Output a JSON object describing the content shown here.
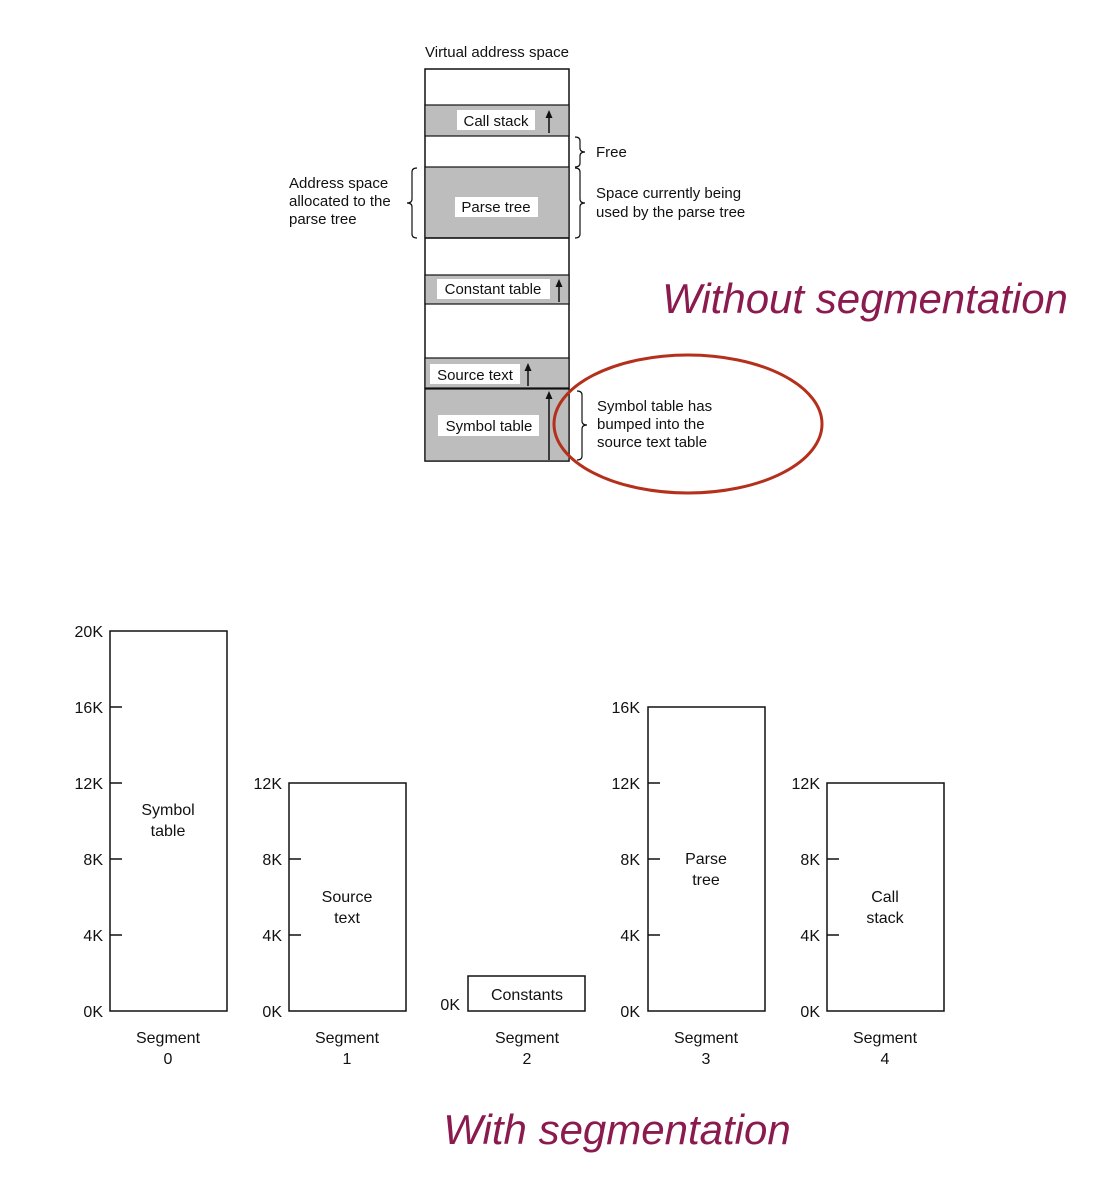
{
  "top_diagram": {
    "title": "Virtual address space",
    "regions": {
      "call_stack": "Call stack",
      "parse_tree": "Parse tree",
      "constant_table": "Constant table",
      "source_text": "Source text",
      "symbol_table": "Symbol table"
    },
    "annotations": {
      "free": "Free",
      "allocated": [
        "Address space",
        "allocated to the",
        "parse tree"
      ],
      "space_used": [
        "Space currently being",
        "used by the parse tree"
      ],
      "bumped": [
        "Symbol table has",
        "bumped into the",
        "source text table"
      ]
    },
    "highlight_color": "#b5301c",
    "caption": "Without segmentation"
  },
  "bottom_diagram": {
    "segments": [
      {
        "name": [
          "Segment",
          "0"
        ],
        "content": [
          "Symbol",
          "table"
        ],
        "size_k": 20,
        "ticks": [
          "0K",
          "4K",
          "8K",
          "12K",
          "16K",
          "20K"
        ]
      },
      {
        "name": [
          "Segment",
          "1"
        ],
        "content": [
          "Source",
          "text"
        ],
        "size_k": 12,
        "ticks": [
          "0K",
          "4K",
          "8K",
          "12K"
        ]
      },
      {
        "name": [
          "Segment",
          "2"
        ],
        "content": [
          "Constants"
        ],
        "size_k": 2,
        "ticks": [
          "0K"
        ]
      },
      {
        "name": [
          "Segment",
          "3"
        ],
        "content": [
          "Parse",
          "tree"
        ],
        "size_k": 16,
        "ticks": [
          "0K",
          "4K",
          "8K",
          "12K",
          "16K"
        ]
      },
      {
        "name": [
          "Segment",
          "4"
        ],
        "content": [
          "Call",
          "stack"
        ],
        "size_k": 12,
        "ticks": [
          "0K",
          "4K",
          "8K",
          "12K"
        ]
      }
    ],
    "caption": "With segmentation"
  },
  "colors": {
    "caption": "#8b1a4f",
    "region_fill": "#bdbdbd"
  }
}
